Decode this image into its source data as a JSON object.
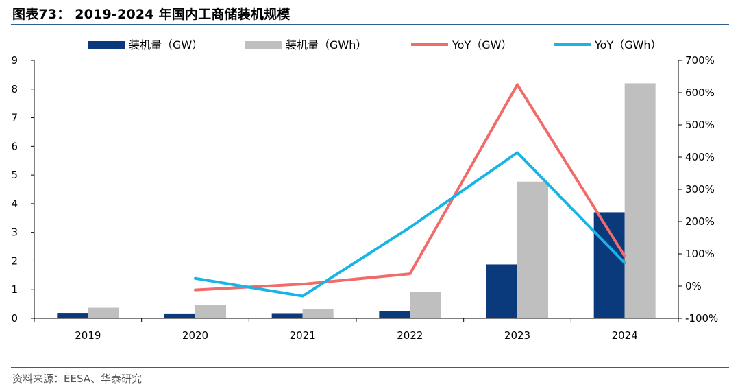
{
  "title": "图表73： 2019-2024 年国内工商储装机规模",
  "source": "资料来源：EESA、华泰研究",
  "colors": {
    "gw_bar": "#0b3a7c",
    "gwh_bar": "#bfbfbf",
    "yoy_gw": "#f26b6b",
    "yoy_gwh": "#19b4e6",
    "rule": "#2f5f8f"
  },
  "chart_data": {
    "type": "bar",
    "categories": [
      "2019",
      "2020",
      "2021",
      "2022",
      "2023",
      "2024"
    ],
    "series": [
      {
        "name": "装机量（GW）",
        "type": "bar",
        "axis": "left",
        "values": [
          0.19,
          0.17,
          0.18,
          0.26,
          1.88,
          3.7
        ]
      },
      {
        "name": "装机量（GWh）",
        "type": "bar",
        "axis": "left",
        "values": [
          0.37,
          0.47,
          0.33,
          0.92,
          4.77,
          8.2
        ]
      },
      {
        "name": "YoY（GW）",
        "type": "line",
        "axis": "right",
        "values": [
          null,
          -12,
          6,
          38,
          625,
          93
        ]
      },
      {
        "name": "YoY（GWh）",
        "type": "line",
        "axis": "right",
        "values": [
          null,
          24,
          -31,
          182,
          414,
          72
        ]
      }
    ],
    "y_left": {
      "min": 0,
      "max": 9,
      "ticks": [
        "0",
        "1",
        "2",
        "3",
        "4",
        "5",
        "6",
        "7",
        "8",
        "9"
      ]
    },
    "y_right": {
      "min": -100,
      "max": 700,
      "ticks": [
        "-100%",
        "0%",
        "100%",
        "200%",
        "300%",
        "400%",
        "500%",
        "600%",
        "700%"
      ]
    },
    "grid": false,
    "legend_position": "top"
  }
}
